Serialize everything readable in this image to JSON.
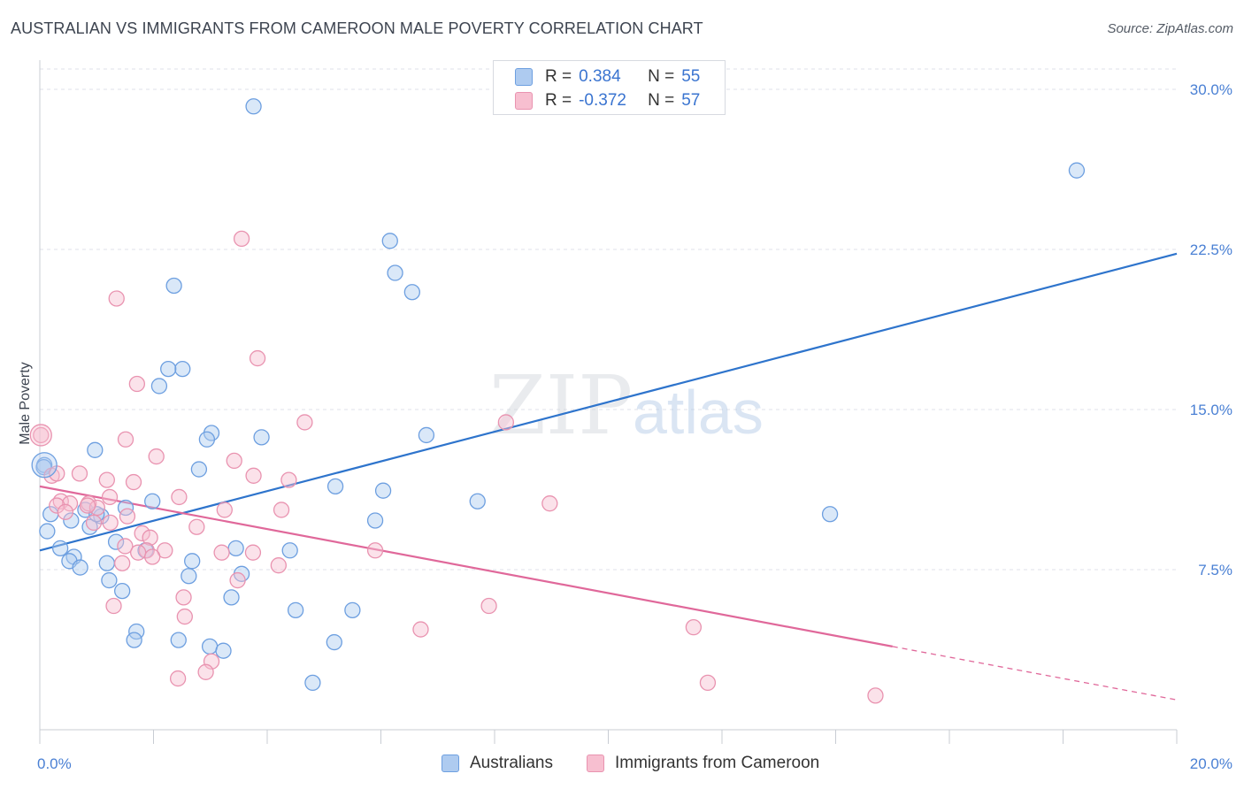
{
  "title": "AUSTRALIAN VS IMMIGRANTS FROM CAMEROON MALE POVERTY CORRELATION CHART",
  "source": "Source: ZipAtlas.com",
  "watermark": {
    "zip": "ZIP",
    "atlas": "atlas"
  },
  "legend_stats": [
    {
      "r_label": "R =",
      "r_value": "0.384",
      "n_label": "N =",
      "n_value": "55"
    },
    {
      "r_label": "R =",
      "r_value": "-0.372",
      "n_label": "N =",
      "n_value": "57"
    }
  ],
  "colors": {
    "blue_fill": "#aecbf0",
    "blue_stroke": "#6d9fe0",
    "blue_line": "#2e74cc",
    "pink_fill": "#f7bfd0",
    "pink_stroke": "#e993b0",
    "pink_line": "#e0689a",
    "grid": "#dfe2e8",
    "axis": "#c8ccd3"
  },
  "chart_data": {
    "type": "scatter",
    "title": "AUSTRALIAN VS IMMIGRANTS FROM CAMEROON MALE POVERTY CORRELATION CHART",
    "xlabel": "",
    "ylabel": "Male Poverty",
    "xlim": [
      0,
      20
    ],
    "ylim": [
      0,
      31.2
    ],
    "x_tick_labels": [
      "0.0%",
      "20.0%"
    ],
    "y_ticks": [
      7.5,
      15.0,
      22.5,
      30.0
    ],
    "y_tick_labels": [
      "7.5%",
      "15.0%",
      "22.5%",
      "30.0%"
    ],
    "grid": true,
    "legend_position": "bottom",
    "series": [
      {
        "name": "Australians",
        "points": [
          [
            3.76,
            29.2
          ],
          [
            18.24,
            26.2
          ],
          [
            6.16,
            22.9
          ],
          [
            6.25,
            21.4
          ],
          [
            6.55,
            20.5
          ],
          [
            2.36,
            20.8
          ],
          [
            2.51,
            16.9
          ],
          [
            2.26,
            16.9
          ],
          [
            2.1,
            16.1
          ],
          [
            3.02,
            13.9
          ],
          [
            2.94,
            13.6
          ],
          [
            3.9,
            13.7
          ],
          [
            6.8,
            13.8
          ],
          [
            0.97,
            13.1
          ],
          [
            0.08,
            12.4
          ],
          [
            2.8,
            12.2
          ],
          [
            5.2,
            11.4
          ],
          [
            6.04,
            11.2
          ],
          [
            7.7,
            10.7
          ],
          [
            1.98,
            10.7
          ],
          [
            1.51,
            10.4
          ],
          [
            0.8,
            10.3
          ],
          [
            0.19,
            10.1
          ],
          [
            1.08,
            10.0
          ],
          [
            0.55,
            9.8
          ],
          [
            13.9,
            10.1
          ],
          [
            5.9,
            9.8
          ],
          [
            0.88,
            9.5
          ],
          [
            0.13,
            9.3
          ],
          [
            1.34,
            8.8
          ],
          [
            0.36,
            8.5
          ],
          [
            1.86,
            8.4
          ],
          [
            3.45,
            8.5
          ],
          [
            4.4,
            8.4
          ],
          [
            0.6,
            8.1
          ],
          [
            0.52,
            7.9
          ],
          [
            1.18,
            7.8
          ],
          [
            2.68,
            7.9
          ],
          [
            0.71,
            7.6
          ],
          [
            3.55,
            7.3
          ],
          [
            2.62,
            7.2
          ],
          [
            1.22,
            7.0
          ],
          [
            1.45,
            6.5
          ],
          [
            3.37,
            6.2
          ],
          [
            4.5,
            5.6
          ],
          [
            5.5,
            5.6
          ],
          [
            1.7,
            4.6
          ],
          [
            1.66,
            4.2
          ],
          [
            2.44,
            4.2
          ],
          [
            2.99,
            3.9
          ],
          [
            3.23,
            3.7
          ],
          [
            5.18,
            4.1
          ],
          [
            4.8,
            2.2
          ],
          [
            0.07,
            12.3
          ],
          [
            1.0,
            10.1
          ]
        ],
        "trend": {
          "x0": 0,
          "y0": 8.4,
          "x1": 20,
          "y1": 22.3
        }
      },
      {
        "name": "Immigrants from Cameroon",
        "points": [
          [
            3.55,
            23.0
          ],
          [
            1.35,
            20.2
          ],
          [
            3.83,
            17.4
          ],
          [
            1.71,
            16.2
          ],
          [
            4.66,
            14.4
          ],
          [
            8.2,
            14.4
          ],
          [
            0.02,
            13.8
          ],
          [
            1.51,
            13.6
          ],
          [
            2.05,
            12.8
          ],
          [
            3.42,
            12.6
          ],
          [
            0.21,
            11.9
          ],
          [
            0.7,
            12.0
          ],
          [
            3.76,
            11.9
          ],
          [
            1.18,
            11.7
          ],
          [
            4.38,
            11.7
          ],
          [
            1.65,
            11.6
          ],
          [
            0.37,
            10.7
          ],
          [
            0.53,
            10.6
          ],
          [
            1.23,
            10.9
          ],
          [
            2.45,
            10.9
          ],
          [
            0.86,
            10.6
          ],
          [
            8.97,
            10.6
          ],
          [
            0.3,
            10.5
          ],
          [
            1.01,
            10.4
          ],
          [
            0.84,
            10.5
          ],
          [
            3.25,
            10.3
          ],
          [
            4.25,
            10.3
          ],
          [
            0.45,
            10.2
          ],
          [
            1.54,
            10.0
          ],
          [
            2.76,
            9.5
          ],
          [
            1.24,
            9.7
          ],
          [
            1.8,
            9.2
          ],
          [
            1.94,
            9.0
          ],
          [
            0.95,
            9.7
          ],
          [
            1.5,
            8.6
          ],
          [
            2.2,
            8.4
          ],
          [
            1.88,
            8.4
          ],
          [
            1.73,
            8.3
          ],
          [
            3.2,
            8.3
          ],
          [
            3.75,
            8.3
          ],
          [
            5.9,
            8.4
          ],
          [
            1.98,
            8.1
          ],
          [
            4.2,
            7.7
          ],
          [
            1.45,
            7.8
          ],
          [
            3.48,
            7.0
          ],
          [
            2.53,
            6.2
          ],
          [
            1.3,
            5.8
          ],
          [
            7.9,
            5.8
          ],
          [
            2.55,
            5.3
          ],
          [
            6.7,
            4.7
          ],
          [
            11.5,
            4.8
          ],
          [
            3.02,
            3.2
          ],
          [
            2.92,
            2.7
          ],
          [
            2.43,
            2.4
          ],
          [
            11.75,
            2.2
          ],
          [
            14.7,
            1.6
          ],
          [
            0.3,
            12.0
          ]
        ],
        "trend": {
          "x0": 0,
          "y0": 11.4,
          "x1": 15.0,
          "y1": 3.9,
          "dash_x1": 20,
          "dash_y1": 1.4
        }
      }
    ]
  }
}
